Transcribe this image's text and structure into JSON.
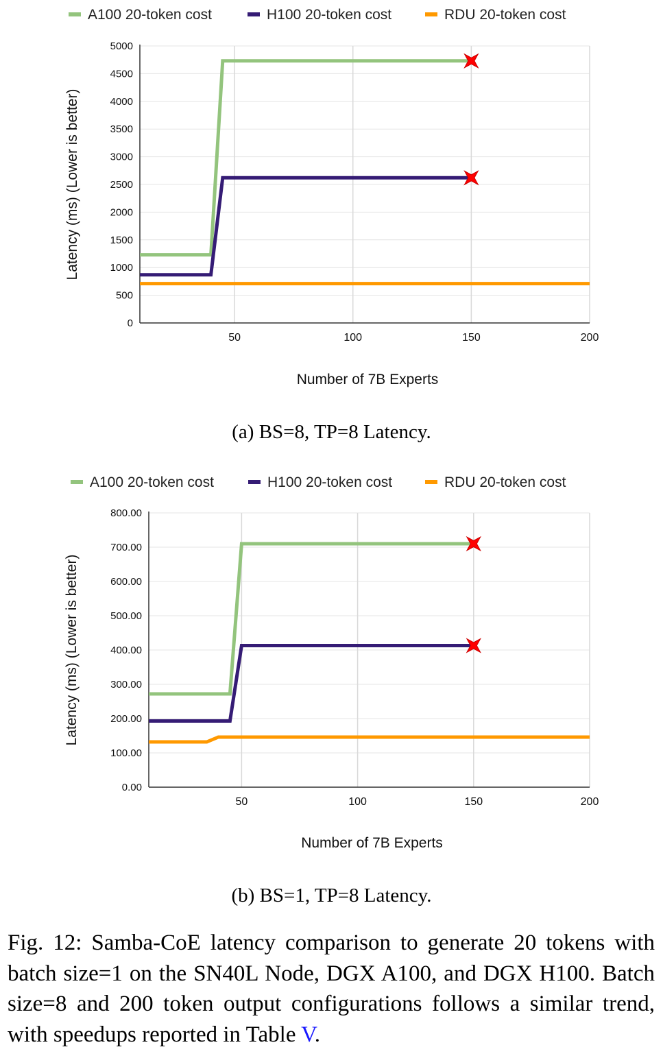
{
  "subcaption_a": "(a) BS=8, TP=8 Latency.",
  "subcaption_b": "(b) BS=1, TP=8 Latency.",
  "caption": {
    "text": "Fig. 12: Samba-CoE latency comparison to generate 20 tokens with batch size=1 on the SN40L Node, DGX A100, and DGX H100. Batch size=8 and 200 token output configurations follows a similar trend, with speedups reported in Table",
    "table_ref": "V",
    "end": "."
  },
  "chart_data": [
    {
      "type": "line",
      "xlabel": "Number of 7B Experts",
      "ylabel": "Latency (ms)  (Lower is better)",
      "xlim": [
        10,
        200
      ],
      "ylim": [
        0,
        5000
      ],
      "xticks": [
        50,
        100,
        150,
        200
      ],
      "yticks": [
        0,
        500,
        1000,
        1500,
        2000,
        2500,
        3000,
        3500,
        4000,
        4500,
        5000
      ],
      "ytick_labels": [
        "0",
        "500",
        "1000",
        "1500",
        "2000",
        "2500",
        "3000",
        "3500",
        "4000",
        "4500",
        "5000"
      ],
      "grid": true,
      "legend_position": "top",
      "series": [
        {
          "name": "A100 20-token cost",
          "color": "#93c47d",
          "points": [
            [
              10,
              1230
            ],
            [
              40,
              1230
            ],
            [
              45,
              4730
            ],
            [
              150,
              4730
            ]
          ],
          "end_marker": "red-star"
        },
        {
          "name": "H100 20-token cost",
          "color": "#351c75",
          "points": [
            [
              10,
              870
            ],
            [
              40,
              870
            ],
            [
              45,
              2620
            ],
            [
              150,
              2620
            ]
          ],
          "end_marker": "red-star"
        },
        {
          "name": "RDU 20-token cost",
          "color": "#ff9900",
          "points": [
            [
              10,
              710
            ],
            [
              200,
              710
            ]
          ]
        }
      ]
    },
    {
      "type": "line",
      "xlabel": "Number of 7B Experts",
      "ylabel": "Latency  (ms) (Lower is better)",
      "xlim": [
        10,
        200
      ],
      "ylim": [
        0,
        800
      ],
      "xticks": [
        50,
        100,
        150,
        200
      ],
      "yticks": [
        0,
        100,
        200,
        300,
        400,
        500,
        600,
        700,
        800
      ],
      "ytick_labels": [
        "0.00",
        "100.00",
        "200.00",
        "300.00",
        "400.00",
        "500.00",
        "600.00",
        "700.00",
        "800.00"
      ],
      "grid": true,
      "legend_position": "top",
      "series": [
        {
          "name": "A100 20-token cost",
          "color": "#93c47d",
          "points": [
            [
              10,
              272
            ],
            [
              45,
              272
            ],
            [
              50,
              710
            ],
            [
              150,
              710
            ]
          ],
          "end_marker": "red-star"
        },
        {
          "name": "H100 20-token cost",
          "color": "#351c75",
          "points": [
            [
              10,
              193
            ],
            [
              45,
              193
            ],
            [
              50,
              413
            ],
            [
              150,
              413
            ]
          ],
          "end_marker": "red-star"
        },
        {
          "name": "RDU 20-token cost",
          "color": "#ff9900",
          "points": [
            [
              10,
              132
            ],
            [
              35,
              132
            ],
            [
              40,
              146
            ],
            [
              200,
              146
            ]
          ]
        }
      ]
    }
  ]
}
